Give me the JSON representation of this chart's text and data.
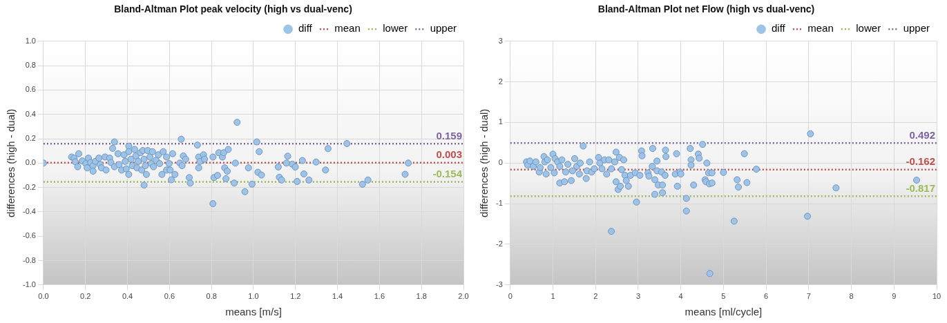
{
  "chart_data": [
    {
      "type": "scatter",
      "title": "Bland-Altman Plot peak velocity (high vs dual-venc)",
      "xlabel": "means [m/s]",
      "ylabel": "differences (high - dual)",
      "xlim": [
        0,
        2
      ],
      "xticks": [
        {
          "value": 0,
          "label": "0.0"
        },
        {
          "value": 0.2,
          "label": "0.2"
        },
        {
          "value": 0.4,
          "label": "0.4"
        },
        {
          "value": 0.6,
          "label": "0.6"
        },
        {
          "value": 0.8,
          "label": "0.8"
        },
        {
          "value": 1,
          "label": "1.0"
        },
        {
          "value": 1.2,
          "label": "1.2"
        },
        {
          "value": 1.4,
          "label": "1.4"
        },
        {
          "value": 1.6,
          "label": "1.6"
        },
        {
          "value": 1.8,
          "label": "1.8"
        },
        {
          "value": 2,
          "label": "2.0"
        }
      ],
      "ylim": [
        -1,
        1
      ],
      "yticks": [
        {
          "value": -1,
          "label": "-1.0"
        },
        -0.8,
        -0.6,
        -0.4,
        -0.2,
        {
          "value": 0,
          "label": "0.0"
        },
        0.2,
        0.4,
        0.6,
        0.8,
        {
          "value": 1,
          "label": "1.0"
        }
      ],
      "grid": true,
      "legend": "top right",
      "marker": "circle",
      "series": [
        {
          "name": "diff",
          "type": "scatter",
          "color": "#9dc3e6",
          "x": [
            0.0,
            0.134,
            0.146,
            0.168,
            0.151,
            0.163,
            0.185,
            0.202,
            0.208,
            0.214,
            0.225,
            0.236,
            0.236,
            0.247,
            0.264,
            0.27,
            0.276,
            0.293,
            0.298,
            0.315,
            0.321,
            0.338,
            0.329,
            0.338,
            0.355,
            0.36,
            0.372,
            0.383,
            0.389,
            0.394,
            0.406,
            0.406,
            0.406,
            0.417,
            0.423,
            0.434,
            0.44,
            0.445,
            0.451,
            0.462,
            0.468,
            0.473,
            0.479,
            0.479,
            0.485,
            0.49,
            0.496,
            0.507,
            0.513,
            0.519,
            0.524,
            0.536,
            0.547,
            0.553,
            0.564,
            0.57,
            0.586,
            0.586,
            0.598,
            0.603,
            0.609,
            0.615,
            0.626,
            0.649,
            0.656,
            0.66,
            0.666,
            0.677,
            0.694,
            0.699,
            0.733,
            0.739,
            0.739,
            0.745,
            0.762,
            0.767,
            0.807,
            0.812,
            0.829,
            0.835,
            0.852,
            0.858,
            0.863,
            0.869,
            0.875,
            0.88,
            0.908,
            0.914,
            0.922,
            0.959,
            0.976,
            0.993,
            1.016,
            1.021,
            1.027,
            0.807,
            1.038,
            1.118,
            1.123,
            1.134,
            1.163,
            1.157,
            1.185,
            1.199,
            1.208,
            1.233,
            1.24,
            1.264,
            1.298,
            1.343,
            1.355,
            1.445,
            1.519,
            1.545,
            1.722,
            1.737
          ],
          "values": [
            0.0,
            0.05,
            0.04,
            0.077,
            0.011,
            -0.03,
            0.018,
            -0.004,
            -0.039,
            0.041,
            0.005,
            -0.021,
            -0.066,
            0.014,
            0.041,
            -0.012,
            -0.039,
            0.05,
            -0.057,
            0.041,
            0.005,
            0.174,
            0.121,
            -0.03,
            0.077,
            -0.012,
            -0.057,
            0.068,
            0.014,
            -0.048,
            0.139,
            0.094,
            -0.093,
            0.032,
            -0.021,
            0.112,
            0.059,
            -0.039,
            0.014,
            0.085,
            -0.057,
            0.103,
            0.032,
            -0.181,
            -0.021,
            -0.093,
            0.103,
            0.05,
            -0.004,
            0.094,
            -0.03,
            0.023,
            0.068,
            -0.004,
            -0.093,
            0.094,
            0.05,
            -0.057,
            -0.004,
            -0.057,
            -0.137,
            0.077,
            -0.093,
            0.0,
            0.196,
            -0.021,
            0.059,
            0.032,
            -0.119,
            -0.164,
            0.148,
            0.05,
            -0.039,
            0.014,
            0.068,
            0.032,
            0.05,
            -0.119,
            -0.101,
            0.085,
            0.05,
            0.085,
            -0.039,
            -0.128,
            -0.066,
            0.112,
            -0.164,
            0.0,
            0.335,
            -0.235,
            -0.039,
            -0.173,
            0.174,
            -0.075,
            0.094,
            -0.333,
            -0.098,
            -0.032,
            -0.116,
            -0.139,
            0.057,
            0.0,
            -0.009,
            -0.032,
            -0.151,
            0.021,
            -0.089,
            -0.139,
            0.009,
            -0.057,
            0.119,
            0.16,
            -0.174,
            -0.139,
            -0.092,
            0.0
          ]
        },
        {
          "name": "mean",
          "type": "line",
          "color": "#c0504d",
          "line_style": "dotted",
          "marker": "none",
          "x": [
            0,
            2
          ],
          "values": [
            0.003,
            0.003
          ],
          "value_labels": [
            null,
            "0.003"
          ]
        },
        {
          "name": "lower",
          "type": "line",
          "color": "#9bbb59",
          "line_style": "dotted",
          "marker": "none",
          "x": [
            0,
            2
          ],
          "values": [
            -0.154,
            -0.154
          ],
          "value_labels": [
            null,
            "-0.154"
          ]
        },
        {
          "name": "upper",
          "type": "line",
          "color": "#8064a2",
          "line_style": "dotted",
          "marker": "none",
          "x": [
            0,
            2
          ],
          "values": [
            0.159,
            0.159
          ],
          "value_labels": [
            null,
            "0.159"
          ]
        }
      ]
    },
    {
      "type": "scatter",
      "title": "Bland-Altman Plot net Flow (high vs dual-venc)",
      "xlabel": "means [ml/cycle]",
      "ylabel": "differences (high - dual)",
      "xlim": [
        0,
        10
      ],
      "xticks": [
        0,
        1,
        2,
        3,
        4,
        5,
        6,
        7,
        8,
        9,
        10
      ],
      "ylim": [
        -3,
        3
      ],
      "yticks": [
        -3,
        -2,
        -1,
        0,
        1,
        2,
        3
      ],
      "grid": true,
      "legend": "top right",
      "marker": "circle",
      "series": [
        {
          "name": "diff",
          "type": "scatter",
          "color": "#9dc3e6",
          "x": [
            0.38,
            0.41,
            0.46,
            0.54,
            0.6,
            0.68,
            0.7,
            0.79,
            0.81,
            0.84,
            0.87,
            0.95,
            1.0,
            1.03,
            1.05,
            1.11,
            1.16,
            1.16,
            1.21,
            1.27,
            1.3,
            1.35,
            1.43,
            1.46,
            1.51,
            1.56,
            1.62,
            1.64,
            1.71,
            1.78,
            1.8,
            1.86,
            1.91,
            1.97,
            2.07,
            2.1,
            2.15,
            2.21,
            2.26,
            2.31,
            2.37,
            2.45,
            2.48,
            2.48,
            2.53,
            2.56,
            2.58,
            2.61,
            2.66,
            2.69,
            2.72,
            2.77,
            2.82,
            2.93,
            2.96,
            3.04,
            3.08,
            3.09,
            3.23,
            3.25,
            3.33,
            3.34,
            3.39,
            3.39,
            3.44,
            3.44,
            3.47,
            3.55,
            3.57,
            3.57,
            3.63,
            3.64,
            3.65,
            3.87,
            3.9,
            3.92,
            3.98,
            4.0,
            4.13,
            4.13,
            4.22,
            4.24,
            4.24,
            4.3,
            4.41,
            4.43,
            4.51,
            4.57,
            4.59,
            4.61,
            4.65,
            4.67,
            4.73,
            4.73,
            5.0,
            5.49,
            5.77,
            5.32,
            5.35,
            5.55,
            5.25,
            7.04,
            7.64,
            6.97,
            9.53,
            2.37,
            4.68
          ],
          "values": [
            0.03,
            -0.05,
            0.05,
            -0.08,
            0.03,
            -0.22,
            -0.11,
            0.16,
            0.03,
            -0.27,
            0.08,
            -0.11,
            0.22,
            -0.24,
            0.11,
            0.03,
            -0.08,
            -0.49,
            0.08,
            -0.46,
            -0.22,
            -0.03,
            -0.43,
            -0.19,
            0.11,
            -0.08,
            -0.27,
            0.0,
            0.42,
            -0.38,
            -0.19,
            0.03,
            -0.22,
            -0.14,
            0.14,
            0.0,
            -0.14,
            0.08,
            -0.27,
            0.08,
            -0.14,
            0.03,
            0.27,
            -0.46,
            -0.65,
            0.14,
            -0.57,
            -0.16,
            0.08,
            -0.3,
            -0.43,
            -0.57,
            -0.3,
            -0.24,
            -0.96,
            -0.3,
            0.3,
            0.18,
            -0.24,
            -0.32,
            -0.08,
            0.36,
            -0.41,
            -0.77,
            -0.19,
            0.05,
            -0.54,
            -0.22,
            -0.54,
            -0.73,
            -0.3,
            0.32,
            0.16,
            -0.27,
            0.23,
            -0.57,
            -0.22,
            -0.27,
            -0.87,
            -1.18,
            0.36,
            0.08,
            -0.05,
            -0.54,
            0.22,
            0.12,
            0.46,
            -0.41,
            -0.46,
            0.0,
            -0.24,
            -0.51,
            -0.49,
            -0.24,
            -0.23,
            0.23,
            -0.15,
            -0.41,
            -0.59,
            -0.48,
            -1.43,
            0.72,
            -0.61,
            -1.31,
            -0.42,
            -1.68,
            -2.72
          ]
        },
        {
          "name": "mean",
          "type": "line",
          "color": "#c0504d",
          "line_style": "dotted",
          "marker": "none",
          "x": [
            0,
            10
          ],
          "values": [
            -0.162,
            -0.162
          ],
          "value_labels": [
            null,
            "-0.162"
          ]
        },
        {
          "name": "lower",
          "type": "line",
          "color": "#9bbb59",
          "line_style": "dotted",
          "marker": "none",
          "x": [
            0,
            10
          ],
          "values": [
            -0.817,
            -0.817
          ],
          "value_labels": [
            null,
            "-0.817"
          ]
        },
        {
          "name": "upper",
          "type": "line",
          "color": "#8064a2",
          "line_style": "dotted",
          "marker": "none",
          "x": [
            0,
            10
          ],
          "values": [
            0.492,
            0.492
          ],
          "value_labels": [
            null,
            "0.492"
          ]
        }
      ]
    }
  ]
}
